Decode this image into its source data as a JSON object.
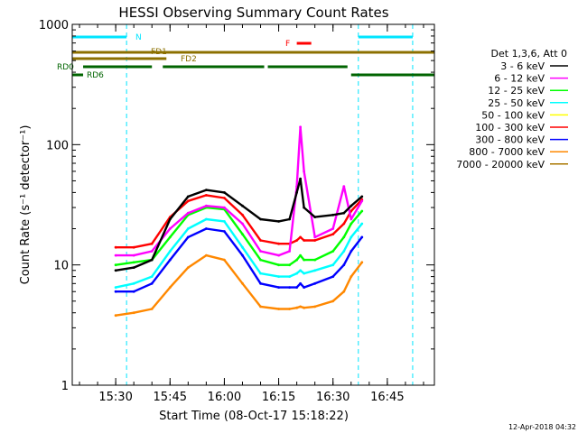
{
  "chart_data": {
    "type": "line",
    "title": "HESSI Observing Summary Count Rates",
    "xlabel": "Start Time (08-Oct-17 15:18:22)",
    "ylabel": "Count Rate (s⁻¹ detector⁻¹)",
    "yscale": "log",
    "ylim": [
      1,
      1000
    ],
    "xlim": [
      "15:18",
      "16:58"
    ],
    "x_ticks": [
      "15:30",
      "15:45",
      "16:00",
      "16:15",
      "16:30",
      "16:45"
    ],
    "y_ticks": [
      "1",
      "10",
      "100",
      "1000"
    ],
    "timestamp": "12-Apr-2018 04:32",
    "legend": {
      "title": "Det 1,3,6, Att 0",
      "entries": [
        {
          "label": "3 - 6 keV",
          "color": "#000000"
        },
        {
          "label": "6 - 12 keV",
          "color": "#ff00ff"
        },
        {
          "label": "12 - 25 keV",
          "color": "#00ff00"
        },
        {
          "label": "25 - 50 keV",
          "color": "#00ffff"
        },
        {
          "label": "50 - 100 keV",
          "color": "#ffff00"
        },
        {
          "label": "100 - 300 keV",
          "color": "#ff0000"
        },
        {
          "label": "300 - 800 keV",
          "color": "#0000ff"
        },
        {
          "label": "800 - 7000 keV",
          "color": "#ff8800"
        },
        {
          "label": "7000 - 20000 keV",
          "color": "#aa7700"
        }
      ]
    },
    "flags": [
      {
        "label": "N",
        "color": "#00e5ff",
        "segments": [
          [
            "15:18",
            "15:33"
          ],
          [
            "16:37",
            "16:52"
          ]
        ]
      },
      {
        "label": "F",
        "color": "#ff0000",
        "segments": [
          [
            "16:20",
            "16:24"
          ]
        ]
      },
      {
        "label": "FD1",
        "color": "#8c7000",
        "segments": [
          [
            "15:18",
            "16:58"
          ]
        ]
      },
      {
        "label": "FD2",
        "color": "#8c7000",
        "segments": [
          [
            "15:18",
            "15:44"
          ]
        ]
      },
      {
        "label": "RD0",
        "color": "#006400",
        "segments": [
          [
            "15:21",
            "15:40"
          ],
          [
            "15:43",
            "16:11"
          ],
          [
            "16:12",
            "16:34"
          ]
        ]
      },
      {
        "label": "RD6",
        "color": "#006400",
        "segments": [
          [
            "15:18",
            "15:21"
          ],
          [
            "16:35",
            "16:58"
          ]
        ]
      }
    ],
    "night_boundaries": [
      "15:18",
      "15:33",
      "16:37",
      "16:52"
    ],
    "series": [
      {
        "name": "3 - 6 keV",
        "color": "#000000",
        "x": [
          "15:30",
          "15:35",
          "15:40",
          "15:45",
          "15:50",
          "15:55",
          "16:00",
          "16:05",
          "16:10",
          "16:15",
          "16:18",
          "16:20",
          "16:21",
          "16:22",
          "16:25",
          "16:30",
          "16:33",
          "16:35",
          "16:38"
        ],
        "y": [
          9,
          9.5,
          11,
          24,
          37,
          42,
          40,
          31,
          24,
          23,
          24,
          40,
          52,
          30,
          25,
          26,
          27,
          31,
          37
        ]
      },
      {
        "name": "6 - 12 keV",
        "color": "#ff00ff",
        "x": [
          "15:30",
          "15:35",
          "15:40",
          "15:45",
          "15:50",
          "15:55",
          "16:00",
          "16:05",
          "16:10",
          "16:15",
          "16:18",
          "16:20",
          "16:21",
          "16:22",
          "16:25",
          "16:30",
          "16:33",
          "16:35",
          "16:38"
        ],
        "y": [
          12,
          12,
          13,
          20,
          27,
          31,
          30,
          22,
          13,
          12,
          13,
          45,
          140,
          60,
          17,
          20,
          45,
          24,
          34
        ]
      },
      {
        "name": "100 - 300 keV",
        "color": "#ff0000",
        "x": [
          "15:30",
          "15:35",
          "15:40",
          "15:45",
          "15:50",
          "15:55",
          "16:00",
          "16:05",
          "16:10",
          "16:15",
          "16:18",
          "16:20",
          "16:21",
          "16:22",
          "16:25",
          "16:30",
          "16:33",
          "16:35",
          "16:38"
        ],
        "y": [
          14,
          14,
          15,
          25,
          34,
          38,
          36,
          26,
          16,
          15,
          15,
          16,
          17,
          16,
          16,
          18,
          22,
          28,
          35
        ]
      },
      {
        "name": "12 - 25 keV",
        "color": "#00ff00",
        "x": [
          "15:30",
          "15:35",
          "15:40",
          "15:45",
          "15:50",
          "15:55",
          "16:00",
          "16:05",
          "16:10",
          "16:15",
          "16:18",
          "16:20",
          "16:21",
          "16:22",
          "16:25",
          "16:30",
          "16:33",
          "16:35",
          "16:38"
        ],
        "y": [
          10,
          10.5,
          11,
          17,
          26,
          30,
          29,
          18,
          11,
          10,
          10,
          11,
          12,
          11,
          11,
          13,
          17,
          22,
          28
        ]
      },
      {
        "name": "25 - 50 keV",
        "color": "#00ffff",
        "x": [
          "15:30",
          "15:35",
          "15:40",
          "15:45",
          "15:50",
          "15:55",
          "16:00",
          "16:05",
          "16:10",
          "16:15",
          "16:18",
          "16:20",
          "16:21",
          "16:22",
          "16:25",
          "16:30",
          "16:33",
          "16:35",
          "16:38"
        ],
        "y": [
          6.5,
          7,
          8,
          13,
          20,
          24,
          23,
          14,
          8.5,
          8,
          8,
          8.5,
          9,
          8.5,
          9,
          10,
          13,
          17,
          22
        ]
      },
      {
        "name": "300 - 800 keV",
        "color": "#0000ff",
        "x": [
          "15:30",
          "15:35",
          "15:40",
          "15:45",
          "15:50",
          "15:55",
          "16:00",
          "16:05",
          "16:10",
          "16:15",
          "16:18",
          "16:20",
          "16:21",
          "16:22",
          "16:25",
          "16:30",
          "16:33",
          "16:35",
          "16:38"
        ],
        "y": [
          6,
          6,
          7,
          11,
          17,
          20,
          19,
          12,
          7,
          6.5,
          6.5,
          6.5,
          7,
          6.5,
          7,
          8,
          10,
          13,
          17
        ]
      },
      {
        "name": "800 - 7000 keV",
        "color": "#ff8800",
        "x": [
          "15:30",
          "15:35",
          "15:40",
          "15:45",
          "15:50",
          "15:55",
          "16:00",
          "16:05",
          "16:10",
          "16:15",
          "16:18",
          "16:20",
          "16:21",
          "16:22",
          "16:25",
          "16:30",
          "16:33",
          "16:35",
          "16:38"
        ],
        "y": [
          3.8,
          4,
          4.3,
          6.5,
          9.5,
          12,
          11,
          7,
          4.5,
          4.3,
          4.3,
          4.4,
          4.5,
          4.4,
          4.5,
          5,
          6,
          8,
          10.5
        ]
      }
    ]
  }
}
